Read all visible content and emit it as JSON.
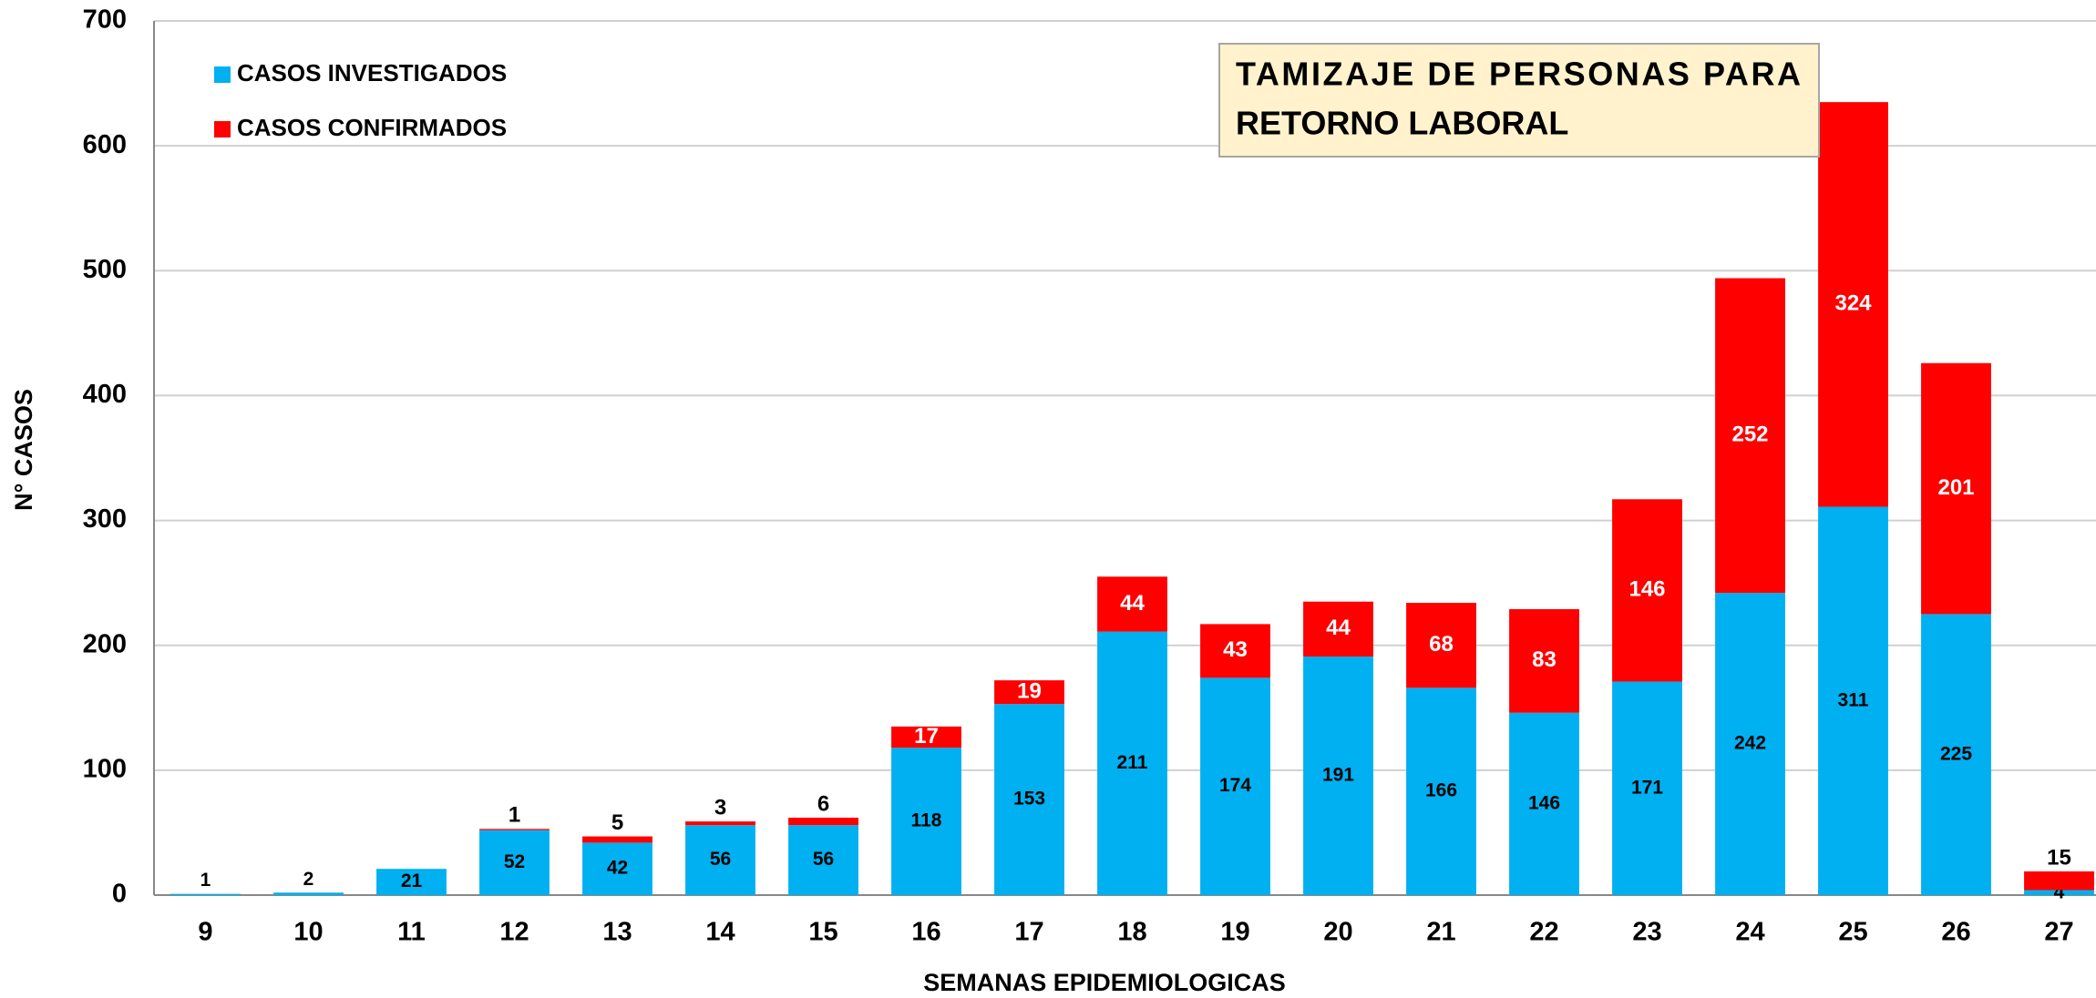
{
  "chart_data": {
    "type": "stacked_bar",
    "title": [
      "TAMIZAJE DE PERSONAS PARA",
      "RETORNO LABORAL"
    ],
    "x_label": "SEMANAS EPIDEMIOLOGICAS",
    "y_label": "N° CASOS",
    "categories": [
      "9",
      "10",
      "11",
      "12",
      "13",
      "14",
      "15",
      "16",
      "17",
      "18",
      "19",
      "20",
      "21",
      "22",
      "23",
      "24",
      "25",
      "26",
      "27"
    ],
    "series": [
      {
        "name": "CASOS INVESTIGADOS",
        "color": "#00b0f0",
        "values": [
          1,
          2,
          21,
          52,
          42,
          56,
          56,
          118,
          153,
          211,
          174,
          191,
          166,
          146,
          171,
          242,
          311,
          225,
          4
        ]
      },
      {
        "name": "CASOS CONFIRMADOS",
        "color": "#ff0000",
        "values": [
          null,
          null,
          null,
          1,
          5,
          3,
          6,
          17,
          19,
          44,
          43,
          44,
          68,
          83,
          146,
          252,
          324,
          201,
          15
        ]
      }
    ],
    "ylim": [
      0,
      700
    ],
    "yticks": [
      0,
      100,
      200,
      300,
      400,
      500,
      600,
      700
    ],
    "grid": true,
    "legend": "top-left"
  }
}
